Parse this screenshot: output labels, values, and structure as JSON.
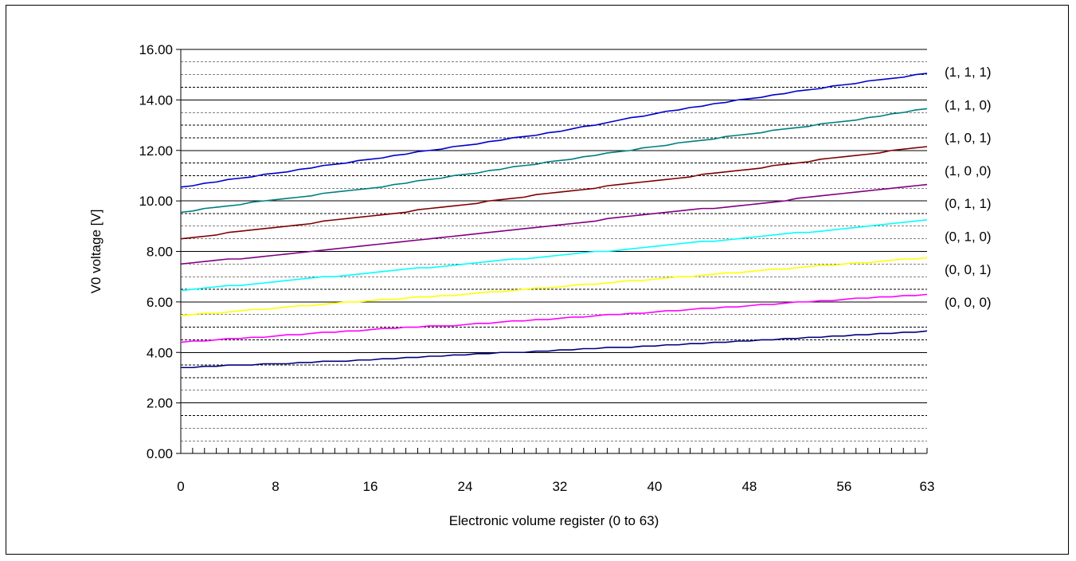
{
  "chart_data": {
    "type": "line",
    "title": "",
    "xlabel": "Electronic volume register (0 to 63)",
    "ylabel": "V0 voltage [V]",
    "xlim": [
      0,
      63
    ],
    "ylim": [
      0,
      16
    ],
    "x_ticks": [
      0,
      8,
      16,
      24,
      32,
      40,
      48,
      56,
      63
    ],
    "x_tick_labels": [
      "0",
      "8",
      "16",
      "24",
      "32",
      "40",
      "48",
      "56",
      "63"
    ],
    "y_ticks": [
      0,
      2,
      4,
      6,
      8,
      10,
      12,
      14,
      16
    ],
    "y_tick_labels": [
      "0.00",
      "2.00",
      "4.00",
      "6.00",
      "8.00",
      "10.00",
      "12.00",
      "14.00",
      "16.00"
    ],
    "grid": {
      "major_y": true,
      "minor_y_dashed": true
    },
    "legend": "right-side labels next to line ends",
    "series": [
      {
        "name": "(1, 1, 1)",
        "color": "#0000CC",
        "x": [
          0,
          8,
          16,
          24,
          32,
          40,
          48,
          56,
          63
        ],
        "values": [
          10.55,
          11.1,
          11.65,
          12.2,
          12.75,
          13.45,
          14.05,
          14.6,
          15.05
        ]
      },
      {
        "name": "(1, 1, 0)",
        "color": "#008080",
        "x": [
          0,
          8,
          16,
          24,
          32,
          40,
          48,
          56,
          63
        ],
        "values": [
          9.55,
          10.05,
          10.5,
          11.05,
          11.6,
          12.15,
          12.65,
          13.15,
          13.65
        ]
      },
      {
        "name": "(1, 0, 1)",
        "color": "#800000",
        "x": [
          0,
          8,
          16,
          24,
          32,
          40,
          48,
          56,
          63
        ],
        "values": [
          8.5,
          8.95,
          9.4,
          9.85,
          10.35,
          10.8,
          11.25,
          11.75,
          12.15
        ]
      },
      {
        "name": "(1, 0 ,0)",
        "color": "#800080",
        "x": [
          0,
          8,
          16,
          24,
          32,
          40,
          48,
          56,
          63
        ],
        "values": [
          7.5,
          7.85,
          8.25,
          8.65,
          9.05,
          9.5,
          9.85,
          10.3,
          10.65
        ]
      },
      {
        "name": "(0, 1, 1)",
        "color": "#00FFFF",
        "x": [
          0,
          8,
          16,
          24,
          32,
          40,
          48,
          56,
          63
        ],
        "values": [
          6.45,
          6.8,
          7.15,
          7.5,
          7.85,
          8.2,
          8.55,
          8.9,
          9.25
        ]
      },
      {
        "name": "(0, 1, 0)",
        "color": "#FFFF00",
        "x": [
          0,
          8,
          16,
          24,
          32,
          40,
          48,
          56,
          63
        ],
        "values": [
          5.45,
          5.75,
          6.05,
          6.3,
          6.6,
          6.9,
          7.2,
          7.5,
          7.75
        ]
      },
      {
        "name": "(0, 0, 1)",
        "color": "#FF00FF",
        "x": [
          0,
          8,
          16,
          24,
          32,
          40,
          48,
          56,
          63
        ],
        "values": [
          4.4,
          4.65,
          4.9,
          5.1,
          5.35,
          5.6,
          5.85,
          6.1,
          6.3
        ]
      },
      {
        "name": "(0, 0, 0)",
        "color": "#000080",
        "x": [
          0,
          8,
          16,
          24,
          32,
          40,
          48,
          56,
          63
        ],
        "values": [
          3.4,
          3.55,
          3.7,
          3.9,
          4.1,
          4.25,
          4.45,
          4.65,
          4.85
        ]
      }
    ]
  }
}
